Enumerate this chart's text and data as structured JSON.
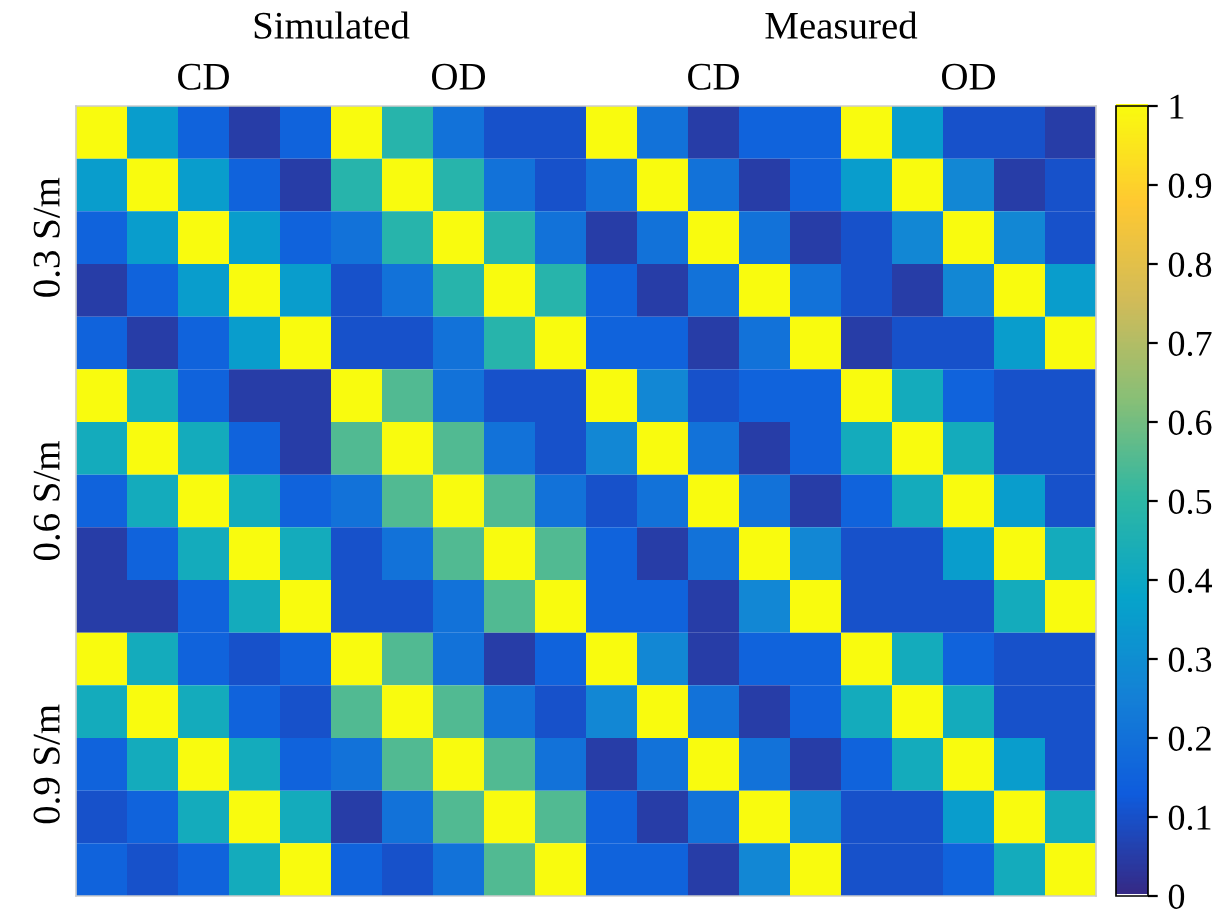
{
  "chart_data": {
    "type": "heatmap",
    "annotations": [
      "Simulated",
      "Measured"
    ],
    "clim": [
      0,
      1
    ],
    "cticks": [
      0,
      0.1,
      0.2,
      0.3,
      0.4,
      0.5,
      0.6,
      0.7,
      0.8,
      0.9,
      1
    ],
    "categories": [
      null,
      null,
      "CD",
      null,
      null,
      null,
      null,
      "OD",
      null,
      null,
      null,
      null,
      "CD",
      null,
      null,
      null,
      null,
      "OD",
      null,
      null
    ],
    "y_categories": [
      null,
      null,
      "0.3 S/m",
      null,
      null,
      null,
      null,
      "0.6 S/m",
      null,
      null,
      null,
      null,
      "0.9 S/m",
      null,
      null
    ],
    "cells": [
      [
        1,
        0.35,
        0.15,
        0.05,
        0.15,
        1,
        0.48,
        0.2,
        0.1,
        0.1,
        1,
        0.2,
        0.05,
        0.15,
        0.15,
        1,
        0.35,
        0.1,
        0.1,
        0.05
      ],
      [
        0.35,
        1,
        0.35,
        0.15,
        0.05,
        0.48,
        1,
        0.48,
        0.2,
        0.1,
        0.2,
        1,
        0.2,
        0.05,
        0.15,
        0.35,
        1,
        0.27,
        0.05,
        0.1
      ],
      [
        0.15,
        0.35,
        1,
        0.35,
        0.15,
        0.2,
        0.48,
        1,
        0.48,
        0.2,
        0.05,
        0.2,
        1,
        0.2,
        0.05,
        0.1,
        0.27,
        1,
        0.27,
        0.1
      ],
      [
        0.05,
        0.15,
        0.35,
        1,
        0.35,
        0.1,
        0.2,
        0.48,
        1,
        0.48,
        0.15,
        0.05,
        0.2,
        1,
        0.2,
        0.1,
        0.05,
        0.27,
        1,
        0.35
      ],
      [
        0.15,
        0.05,
        0.15,
        0.35,
        1,
        0.1,
        0.1,
        0.2,
        0.48,
        1,
        0.15,
        0.15,
        0.05,
        0.2,
        1,
        0.05,
        0.1,
        0.1,
        0.35,
        1
      ],
      [
        1,
        0.42,
        0.15,
        0.05,
        0.05,
        1,
        0.55,
        0.2,
        0.1,
        0.1,
        1,
        0.27,
        0.1,
        0.15,
        0.15,
        1,
        0.42,
        0.15,
        0.1,
        0.1
      ],
      [
        0.42,
        1,
        0.42,
        0.15,
        0.05,
        0.55,
        1,
        0.55,
        0.2,
        0.1,
        0.27,
        1,
        0.2,
        0.05,
        0.15,
        0.42,
        1,
        0.42,
        0.1,
        0.1
      ],
      [
        0.15,
        0.42,
        1,
        0.42,
        0.15,
        0.2,
        0.55,
        1,
        0.55,
        0.2,
        0.1,
        0.2,
        1,
        0.2,
        0.05,
        0.15,
        0.42,
        1,
        0.35,
        0.1
      ],
      [
        0.05,
        0.15,
        0.42,
        1,
        0.42,
        0.1,
        0.2,
        0.55,
        1,
        0.55,
        0.15,
        0.05,
        0.2,
        1,
        0.27,
        0.1,
        0.1,
        0.35,
        1,
        0.42
      ],
      [
        0.05,
        0.05,
        0.15,
        0.42,
        1,
        0.1,
        0.1,
        0.2,
        0.55,
        1,
        0.15,
        0.15,
        0.05,
        0.27,
        1,
        0.1,
        0.1,
        0.1,
        0.42,
        1
      ],
      [
        1,
        0.42,
        0.15,
        0.1,
        0.15,
        1,
        0.55,
        0.2,
        0.05,
        0.15,
        1,
        0.27,
        0.05,
        0.15,
        0.15,
        1,
        0.42,
        0.15,
        0.1,
        0.1
      ],
      [
        0.42,
        1,
        0.42,
        0.15,
        0.1,
        0.55,
        1,
        0.55,
        0.2,
        0.1,
        0.27,
        1,
        0.2,
        0.05,
        0.15,
        0.42,
        1,
        0.42,
        0.1,
        0.1
      ],
      [
        0.15,
        0.42,
        1,
        0.42,
        0.15,
        0.2,
        0.55,
        1,
        0.55,
        0.2,
        0.05,
        0.2,
        1,
        0.2,
        0.05,
        0.15,
        0.42,
        1,
        0.35,
        0.1
      ],
      [
        0.1,
        0.15,
        0.42,
        1,
        0.42,
        0.05,
        0.2,
        0.55,
        1,
        0.55,
        0.15,
        0.05,
        0.2,
        1,
        0.27,
        0.1,
        0.1,
        0.35,
        1,
        0.42
      ],
      [
        0.15,
        0.1,
        0.15,
        0.42,
        1,
        0.15,
        0.1,
        0.2,
        0.55,
        1,
        0.15,
        0.15,
        0.05,
        0.27,
        1,
        0.1,
        0.1,
        0.15,
        0.42,
        1
      ]
    ]
  }
}
